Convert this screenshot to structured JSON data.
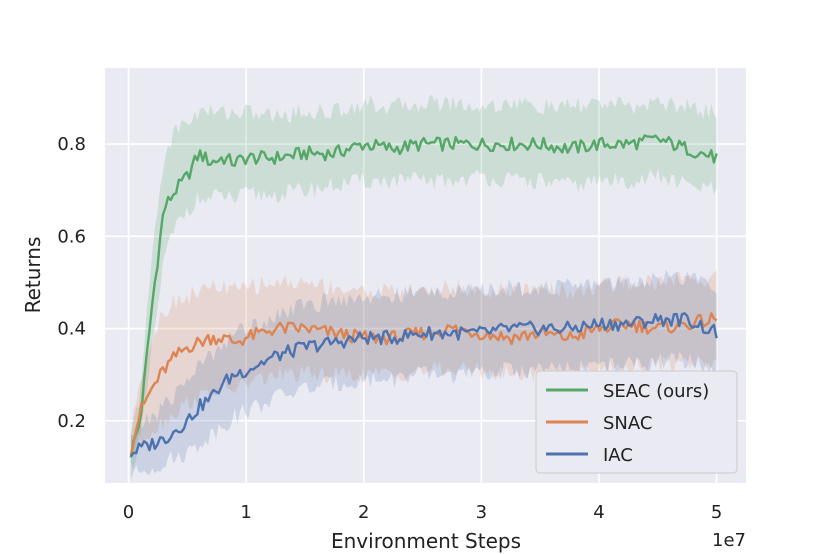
{
  "chart_data": {
    "type": "line",
    "title": "",
    "xlabel": "Environment Steps",
    "ylabel": "Returns",
    "x_scale_label": "1e7",
    "xlim": [
      -0.2,
      5.25
    ],
    "ylim": [
      0.065,
      0.965
    ],
    "x_ticks": [
      0,
      1,
      2,
      3,
      4,
      5
    ],
    "y_ticks": [
      0.2,
      0.4,
      0.6,
      0.8
    ],
    "y_tick_labels": [
      "0.2",
      "0.4",
      "0.6",
      "0.8"
    ],
    "grid": true,
    "legend_position": "bottom-right",
    "series": [
      {
        "name": "SEAC (ours)",
        "color": "#55a868",
        "x": [
          0.02,
          0.1,
          0.2,
          0.3,
          0.4,
          0.5,
          0.6,
          0.7,
          0.8,
          0.9,
          1.0,
          1.25,
          1.5,
          1.75,
          2.0,
          2.25,
          2.5,
          2.75,
          3.0,
          3.25,
          3.5,
          3.75,
          4.0,
          4.25,
          4.5,
          4.75,
          5.0
        ],
        "mean": [
          0.13,
          0.2,
          0.45,
          0.66,
          0.7,
          0.73,
          0.78,
          0.76,
          0.77,
          0.76,
          0.77,
          0.77,
          0.78,
          0.78,
          0.8,
          0.79,
          0.8,
          0.8,
          0.8,
          0.8,
          0.8,
          0.79,
          0.8,
          0.8,
          0.81,
          0.79,
          0.77
        ],
        "lower": [
          0.1,
          0.15,
          0.35,
          0.55,
          0.62,
          0.66,
          0.68,
          0.68,
          0.69,
          0.68,
          0.69,
          0.69,
          0.7,
          0.71,
          0.72,
          0.72,
          0.72,
          0.72,
          0.73,
          0.72,
          0.72,
          0.71,
          0.72,
          0.72,
          0.73,
          0.71,
          0.7
        ],
        "upper": [
          0.16,
          0.26,
          0.56,
          0.77,
          0.83,
          0.85,
          0.87,
          0.87,
          0.87,
          0.87,
          0.87,
          0.86,
          0.87,
          0.87,
          0.89,
          0.88,
          0.89,
          0.89,
          0.88,
          0.89,
          0.88,
          0.88,
          0.89,
          0.88,
          0.89,
          0.88,
          0.87
        ]
      },
      {
        "name": "SNAC",
        "color": "#dd8452",
        "x": [
          0.02,
          0.1,
          0.2,
          0.3,
          0.4,
          0.5,
          0.6,
          0.7,
          0.8,
          0.9,
          1.0,
          1.25,
          1.5,
          1.75,
          2.0,
          2.25,
          2.5,
          2.75,
          3.0,
          3.25,
          3.5,
          3.75,
          4.0,
          4.25,
          4.5,
          4.75,
          5.0
        ],
        "mean": [
          0.14,
          0.22,
          0.27,
          0.31,
          0.34,
          0.36,
          0.37,
          0.38,
          0.38,
          0.37,
          0.38,
          0.4,
          0.4,
          0.39,
          0.38,
          0.38,
          0.39,
          0.4,
          0.39,
          0.38,
          0.39,
          0.38,
          0.4,
          0.41,
          0.4,
          0.41,
          0.42
        ],
        "lower": [
          0.12,
          0.16,
          0.18,
          0.2,
          0.22,
          0.24,
          0.25,
          0.26,
          0.27,
          0.27,
          0.28,
          0.3,
          0.3,
          0.3,
          0.3,
          0.3,
          0.31,
          0.31,
          0.31,
          0.3,
          0.3,
          0.3,
          0.31,
          0.32,
          0.32,
          0.33,
          0.33
        ],
        "upper": [
          0.17,
          0.3,
          0.38,
          0.44,
          0.46,
          0.47,
          0.48,
          0.49,
          0.49,
          0.48,
          0.49,
          0.5,
          0.5,
          0.49,
          0.48,
          0.48,
          0.48,
          0.49,
          0.48,
          0.48,
          0.49,
          0.48,
          0.49,
          0.5,
          0.5,
          0.51,
          0.51
        ]
      },
      {
        "name": "IAC",
        "color": "#4c72b0",
        "x": [
          0.02,
          0.1,
          0.2,
          0.3,
          0.4,
          0.5,
          0.6,
          0.7,
          0.8,
          0.9,
          1.0,
          1.25,
          1.5,
          1.75,
          2.0,
          2.25,
          2.5,
          2.75,
          3.0,
          3.25,
          3.5,
          3.75,
          4.0,
          4.25,
          4.5,
          4.75,
          5.0
        ],
        "mean": [
          0.13,
          0.14,
          0.15,
          0.16,
          0.18,
          0.2,
          0.23,
          0.25,
          0.28,
          0.3,
          0.31,
          0.34,
          0.36,
          0.37,
          0.38,
          0.38,
          0.39,
          0.39,
          0.39,
          0.4,
          0.4,
          0.4,
          0.41,
          0.41,
          0.42,
          0.42,
          0.39
        ],
        "lower": [
          0.08,
          0.09,
          0.1,
          0.11,
          0.12,
          0.13,
          0.15,
          0.17,
          0.19,
          0.21,
          0.22,
          0.25,
          0.27,
          0.28,
          0.29,
          0.29,
          0.3,
          0.3,
          0.3,
          0.31,
          0.31,
          0.31,
          0.32,
          0.32,
          0.33,
          0.33,
          0.31
        ],
        "upper": [
          0.17,
          0.19,
          0.21,
          0.23,
          0.26,
          0.29,
          0.32,
          0.34,
          0.37,
          0.39,
          0.4,
          0.43,
          0.45,
          0.46,
          0.47,
          0.47,
          0.48,
          0.48,
          0.48,
          0.49,
          0.49,
          0.49,
          0.5,
          0.5,
          0.51,
          0.51,
          0.49
        ]
      }
    ]
  }
}
